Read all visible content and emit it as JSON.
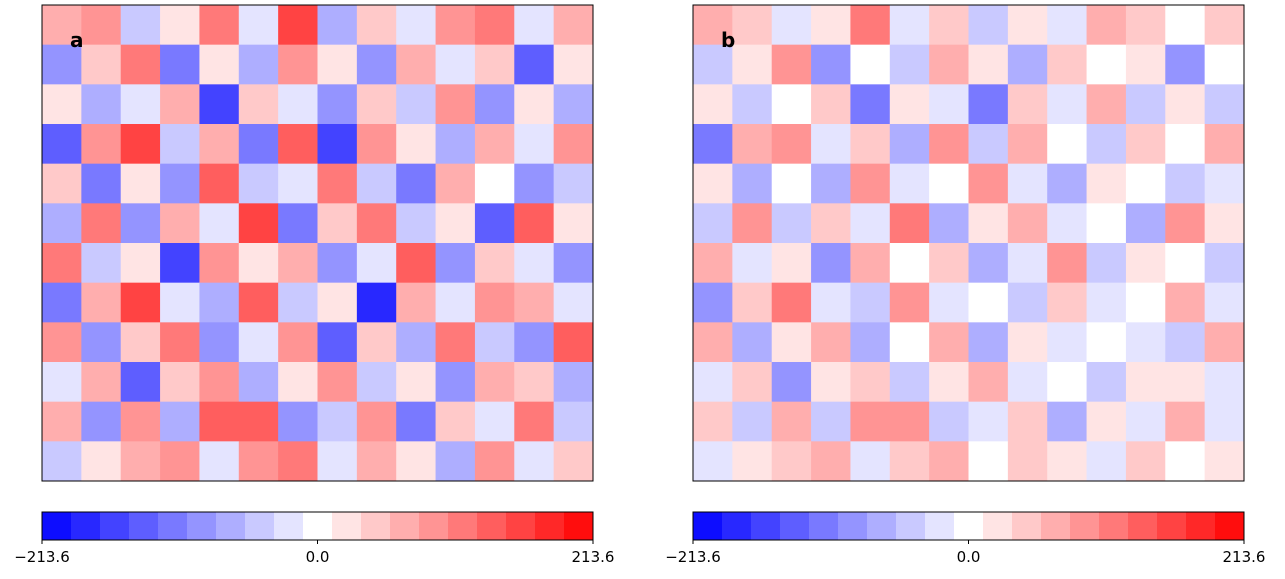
{
  "chart_data": [
    {
      "type": "contour",
      "label": "a",
      "colormap": "bwr",
      "n_levels": 19,
      "zlim": [
        -213.6,
        213.6
      ],
      "cbar_ticks": [
        {
          "value": -213.6,
          "label": "−213.6"
        },
        {
          "value": 0,
          "label": "0.0"
        },
        {
          "value": 213.6,
          "label": "213.6"
        }
      ],
      "z": [
        [
          60,
          90,
          -40,
          30,
          120,
          -20,
          150,
          -60,
          40,
          -30,
          90,
          120,
          -20,
          60
        ],
        [
          -90,
          40,
          110,
          -120,
          20,
          -60,
          80,
          30,
          -100,
          60,
          -20,
          40,
          -130,
          20
        ],
        [
          30,
          -60,
          -20,
          70,
          -150,
          40,
          -30,
          -80,
          50,
          -40,
          100,
          -90,
          30,
          -60
        ],
        [
          -140,
          80,
          150,
          -40,
          60,
          -110,
          130,
          -160,
          90,
          20,
          -60,
          70,
          -20,
          100
        ],
        [
          40,
          -110,
          20,
          -90,
          140,
          -50,
          -20,
          120,
          -40,
          -110,
          60,
          10,
          -90,
          -40
        ],
        [
          -60,
          120,
          -80,
          60,
          -30,
          160,
          -120,
          50,
          110,
          -50,
          20,
          -130,
          140,
          30
        ],
        [
          110,
          -40,
          30,
          -150,
          90,
          20,
          60,
          -90,
          -30,
          130,
          -100,
          40,
          -20,
          -80
        ],
        [
          -120,
          70,
          160,
          -30,
          -60,
          130,
          -40,
          20,
          -170,
          60,
          -30,
          90,
          70,
          -30
        ],
        [
          90,
          -100,
          40,
          110,
          -90,
          -20,
          100,
          -130,
          40,
          -60,
          120,
          -40,
          -100,
          130
        ],
        [
          -30,
          60,
          -130,
          40,
          80,
          -70,
          30,
          90,
          -50,
          20,
          -90,
          60,
          40,
          -60
        ],
        [
          70,
          -80,
          90,
          -60,
          130,
          140,
          -90,
          -40,
          80,
          -120,
          50,
          -30,
          110,
          -40
        ],
        [
          -40,
          30,
          60,
          100,
          -30,
          80,
          120,
          -20,
          60,
          30,
          -60,
          90,
          -20,
          50
        ]
      ]
    },
    {
      "type": "contour",
      "label": "b",
      "colormap": "bwr",
      "n_levels": 19,
      "zlim": [
        -213.6,
        213.6
      ],
      "cbar_ticks": [
        {
          "value": -213.6,
          "label": "−213.6"
        },
        {
          "value": 0,
          "label": "0.0"
        },
        {
          "value": 213.6,
          "label": "213.6"
        }
      ],
      "z": [
        [
          70,
          50,
          -30,
          20,
          110,
          -20,
          40,
          -40,
          30,
          -20,
          60,
          40,
          -10,
          50
        ],
        [
          -50,
          30,
          80,
          -90,
          10,
          -40,
          60,
          20,
          -60,
          40,
          -10,
          20,
          -90,
          10
        ],
        [
          20,
          -40,
          -10,
          50,
          -110,
          30,
          -20,
          -120,
          40,
          -30,
          60,
          -50,
          20,
          -40
        ],
        [
          -120,
          60,
          100,
          -30,
          40,
          -70,
          100,
          -50,
          60,
          10,
          -40,
          50,
          -10,
          60
        ],
        [
          30,
          -70,
          10,
          -60,
          90,
          -30,
          -10,
          80,
          -20,
          -60,
          30,
          10,
          -50,
          -20
        ],
        [
          -40,
          80,
          -50,
          40,
          -20,
          110,
          -70,
          30,
          70,
          -30,
          10,
          -60,
          80,
          20
        ],
        [
          70,
          -30,
          20,
          -90,
          60,
          10,
          40,
          -60,
          -20,
          80,
          -50,
          20,
          -10,
          -40
        ],
        [
          -80,
          50,
          110,
          -20,
          -40,
          80,
          -20,
          10,
          -50,
          40,
          -20,
          10,
          60,
          -20
        ],
        [
          60,
          -70,
          30,
          70,
          -60,
          -10,
          60,
          -70,
          20,
          -30,
          10,
          -20,
          -50,
          70
        ],
        [
          -20,
          40,
          -80,
          30,
          50,
          -40,
          20,
          60,
          -30,
          10,
          -50,
          30,
          20,
          -30
        ],
        [
          50,
          -50,
          60,
          -40,
          80,
          90,
          -50,
          -20,
          50,
          -60,
          30,
          -20,
          60,
          -20
        ],
        [
          -20,
          20,
          40,
          60,
          -20,
          50,
          70,
          -10,
          40,
          20,
          -30,
          50,
          -10,
          30
        ]
      ]
    }
  ]
}
